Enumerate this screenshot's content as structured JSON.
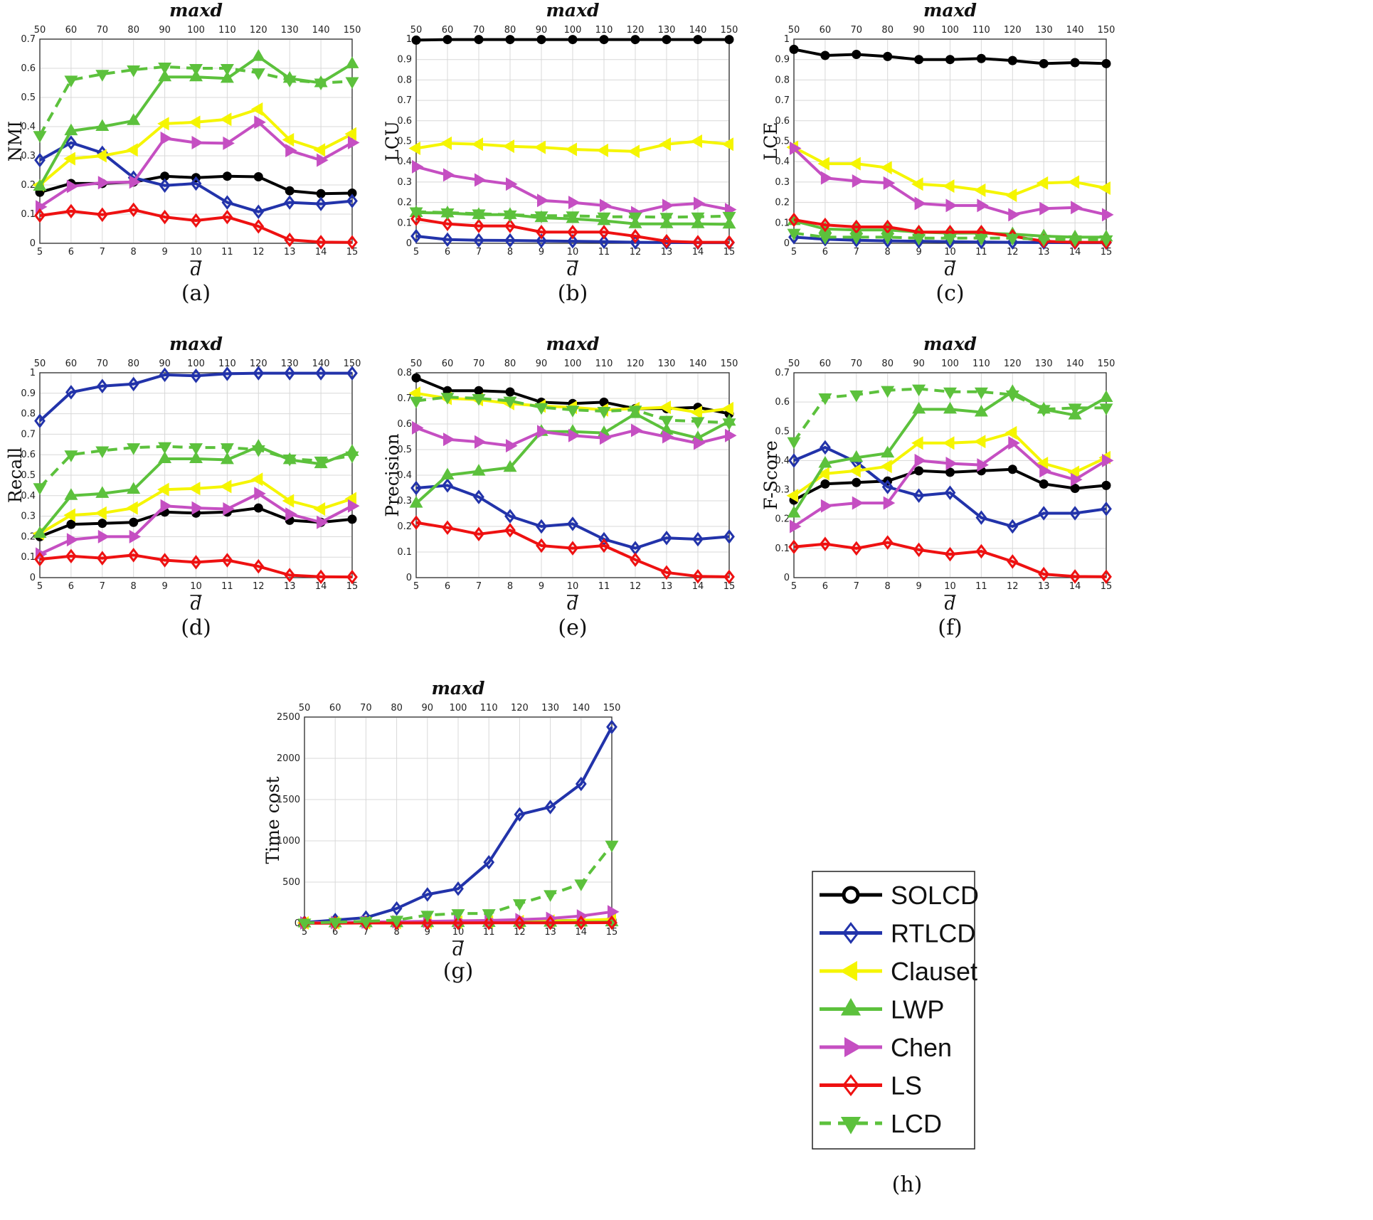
{
  "legend": {
    "entries": [
      "SOLCD",
      "RTLCD",
      "Clauset",
      "LWP",
      "Chen",
      "LS",
      "LCD"
    ],
    "colors": [
      "#000000",
      "#2233aa",
      "#f5f500",
      "#5cc13c",
      "#c54fc2",
      "#ee1111",
      "#5cc13c"
    ],
    "markers": [
      "circle",
      "diamond",
      "triangle-left",
      "triangle-up",
      "triangle-right",
      "diamond",
      "triangle-down"
    ],
    "dashed": [
      false,
      false,
      false,
      false,
      false,
      false,
      true
    ],
    "panel_label": "(h)"
  },
  "chart_data": [
    {
      "type": "line",
      "panel": "(a)",
      "ylabel": "NMI",
      "xlabel": "d",
      "top_label": "maxd",
      "ylim": [
        0,
        0.7
      ],
      "yticks": [
        "0",
        "0.1",
        "0.2",
        "0.3",
        "0.4",
        "0.5",
        "0.6",
        "0.7"
      ],
      "x": [
        5,
        6,
        7,
        8,
        9,
        10,
        11,
        12,
        13,
        14,
        15
      ],
      "x_top": [
        "50",
        "60",
        "70",
        "80",
        "90",
        "100",
        "110",
        "120",
        "130",
        "140",
        "150"
      ],
      "series": [
        {
          "name": "SOLCD",
          "values": [
            0.175,
            0.205,
            0.205,
            0.21,
            0.23,
            0.225,
            0.23,
            0.228,
            0.18,
            0.17,
            0.172
          ]
        },
        {
          "name": "RTLCD",
          "values": [
            0.285,
            0.345,
            0.31,
            0.225,
            0.198,
            0.205,
            0.14,
            0.108,
            0.14,
            0.135,
            0.145
          ]
        },
        {
          "name": "Clauset",
          "values": [
            0.2,
            0.29,
            0.3,
            0.32,
            0.41,
            0.415,
            0.425,
            0.46,
            0.355,
            0.32,
            0.375
          ]
        },
        {
          "name": "LWP",
          "values": [
            0.195,
            0.385,
            0.4,
            0.42,
            0.57,
            0.57,
            0.565,
            0.64,
            0.565,
            0.55,
            0.615
          ]
        },
        {
          "name": "Chen",
          "values": [
            0.125,
            0.195,
            0.208,
            0.21,
            0.36,
            0.345,
            0.343,
            0.415,
            0.318,
            0.285,
            0.345
          ]
        },
        {
          "name": "LS",
          "values": [
            0.095,
            0.11,
            0.098,
            0.115,
            0.09,
            0.078,
            0.09,
            0.058,
            0.012,
            0.004,
            0.003
          ]
        },
        {
          "name": "LCD",
          "values": [
            0.37,
            0.56,
            0.58,
            0.595,
            0.605,
            0.6,
            0.6,
            0.585,
            0.56,
            0.55,
            0.555
          ]
        }
      ]
    },
    {
      "type": "line",
      "panel": "(b)",
      "ylabel": "LCU",
      "xlabel": "d",
      "top_label": "maxd",
      "ylim": [
        0,
        1
      ],
      "yticks": [
        "0",
        "0.1",
        "0.2",
        "0.3",
        "0.4",
        "0.5",
        "0.6",
        "0.7",
        "0.8",
        "0.9",
        "1"
      ],
      "x": [
        5,
        6,
        7,
        8,
        9,
        10,
        11,
        12,
        13,
        14,
        15
      ],
      "x_top": [
        "50",
        "60",
        "70",
        "80",
        "90",
        "100",
        "110",
        "120",
        "130",
        "140",
        "150"
      ],
      "series": [
        {
          "name": "SOLCD",
          "values": [
            0.995,
            0.998,
            0.998,
            0.998,
            0.998,
            0.998,
            0.998,
            0.998,
            0.998,
            0.998,
            0.998
          ]
        },
        {
          "name": "RTLCD",
          "values": [
            0.035,
            0.018,
            0.015,
            0.014,
            0.012,
            0.01,
            0.008,
            0.005,
            0.004,
            0.003,
            0.003
          ]
        },
        {
          "name": "Clauset",
          "values": [
            0.465,
            0.49,
            0.485,
            0.475,
            0.47,
            0.46,
            0.455,
            0.45,
            0.485,
            0.5,
            0.485
          ]
        },
        {
          "name": "LWP",
          "values": [
            0.15,
            0.148,
            0.14,
            0.14,
            0.125,
            0.12,
            0.11,
            0.095,
            0.095,
            0.095,
            0.093
          ]
        },
        {
          "name": "Chen",
          "values": [
            0.375,
            0.335,
            0.31,
            0.29,
            0.21,
            0.2,
            0.185,
            0.15,
            0.185,
            0.195,
            0.165
          ]
        },
        {
          "name": "LS",
          "values": [
            0.12,
            0.095,
            0.085,
            0.085,
            0.055,
            0.055,
            0.055,
            0.035,
            0.01,
            0.005,
            0.005
          ]
        },
        {
          "name": "LCD",
          "values": [
            0.155,
            0.15,
            0.145,
            0.14,
            0.135,
            0.135,
            0.13,
            0.13,
            0.128,
            0.13,
            0.133
          ]
        }
      ]
    },
    {
      "type": "line",
      "panel": "(c)",
      "ylabel": "LCE",
      "xlabel": "d",
      "top_label": "maxd",
      "ylim": [
        0,
        1
      ],
      "yticks": [
        "0",
        "0.1",
        "0.2",
        "0.3",
        "0.4",
        "0.5",
        "0.6",
        "0.7",
        "0.8",
        "0.9",
        "1"
      ],
      "x": [
        5,
        6,
        7,
        8,
        9,
        10,
        11,
        12,
        13,
        14,
        15
      ],
      "x_top": [
        "50",
        "60",
        "70",
        "80",
        "90",
        "100",
        "110",
        "120",
        "130",
        "140",
        "150"
      ],
      "series": [
        {
          "name": "SOLCD",
          "values": [
            0.95,
            0.92,
            0.925,
            0.915,
            0.9,
            0.9,
            0.905,
            0.895,
            0.88,
            0.885,
            0.88
          ]
        },
        {
          "name": "RTLCD",
          "values": [
            0.03,
            0.02,
            0.015,
            0.012,
            0.01,
            0.008,
            0.006,
            0.005,
            0.004,
            0.003,
            0.003
          ]
        },
        {
          "name": "Clauset",
          "values": [
            0.47,
            0.39,
            0.39,
            0.37,
            0.29,
            0.28,
            0.26,
            0.235,
            0.295,
            0.3,
            0.27
          ]
        },
        {
          "name": "LWP",
          "values": [
            0.11,
            0.07,
            0.065,
            0.065,
            0.055,
            0.05,
            0.05,
            0.045,
            0.035,
            0.03,
            0.03
          ]
        },
        {
          "name": "Chen",
          "values": [
            0.465,
            0.32,
            0.305,
            0.295,
            0.195,
            0.185,
            0.185,
            0.14,
            0.17,
            0.175,
            0.14
          ]
        },
        {
          "name": "LS",
          "values": [
            0.115,
            0.09,
            0.08,
            0.08,
            0.055,
            0.055,
            0.055,
            0.035,
            0.01,
            0.005,
            0.005
          ]
        },
        {
          "name": "LCD",
          "values": [
            0.05,
            0.03,
            0.03,
            0.03,
            0.025,
            0.025,
            0.025,
            0.025,
            0.02,
            0.018,
            0.018
          ]
        }
      ]
    },
    {
      "type": "line",
      "panel": "(d)",
      "ylabel": "Recall",
      "xlabel": "d",
      "top_label": "maxd",
      "ylim": [
        0,
        1
      ],
      "yticks": [
        "0",
        "0.1",
        "0.2",
        "0.3",
        "0.4",
        "0.5",
        "0.6",
        "0.7",
        "0.8",
        "0.9",
        "1"
      ],
      "x": [
        5,
        6,
        7,
        8,
        9,
        10,
        11,
        12,
        13,
        14,
        15
      ],
      "x_top": [
        "50",
        "60",
        "70",
        "80",
        "90",
        "100",
        "110",
        "120",
        "130",
        "140",
        "150"
      ],
      "series": [
        {
          "name": "SOLCD",
          "values": [
            0.2,
            0.26,
            0.265,
            0.27,
            0.32,
            0.315,
            0.32,
            0.34,
            0.28,
            0.27,
            0.285
          ]
        },
        {
          "name": "RTLCD",
          "values": [
            0.765,
            0.905,
            0.935,
            0.945,
            0.99,
            0.985,
            0.995,
            0.998,
            0.998,
            0.998,
            0.998
          ]
        },
        {
          "name": "Clauset",
          "values": [
            0.215,
            0.305,
            0.315,
            0.34,
            0.43,
            0.435,
            0.445,
            0.48,
            0.375,
            0.335,
            0.385
          ]
        },
        {
          "name": "LWP",
          "values": [
            0.215,
            0.4,
            0.41,
            0.43,
            0.58,
            0.58,
            0.575,
            0.64,
            0.575,
            0.555,
            0.615
          ]
        },
        {
          "name": "Chen",
          "values": [
            0.115,
            0.185,
            0.2,
            0.2,
            0.35,
            0.34,
            0.335,
            0.41,
            0.31,
            0.27,
            0.35
          ]
        },
        {
          "name": "LS",
          "values": [
            0.09,
            0.105,
            0.095,
            0.11,
            0.085,
            0.075,
            0.085,
            0.055,
            0.012,
            0.004,
            0.003
          ]
        },
        {
          "name": "LCD",
          "values": [
            0.44,
            0.6,
            0.62,
            0.635,
            0.64,
            0.635,
            0.635,
            0.625,
            0.58,
            0.57,
            0.595
          ]
        }
      ]
    },
    {
      "type": "line",
      "panel": "(e)",
      "ylabel": "Precision",
      "xlabel": "d",
      "top_label": "maxd",
      "ylim": [
        0,
        0.8
      ],
      "yticks": [
        "0",
        "0.1",
        "0.2",
        "0.3",
        "0.4",
        "0.5",
        "0.6",
        "0.7",
        "0.8"
      ],
      "x": [
        5,
        6,
        7,
        8,
        9,
        10,
        11,
        12,
        13,
        14,
        15
      ],
      "x_top": [
        "50",
        "60",
        "70",
        "80",
        "90",
        "100",
        "110",
        "120",
        "130",
        "140",
        "150"
      ],
      "series": [
        {
          "name": "SOLCD",
          "values": [
            0.78,
            0.73,
            0.73,
            0.725,
            0.685,
            0.68,
            0.685,
            0.66,
            0.66,
            0.665,
            0.64
          ]
        },
        {
          "name": "RTLCD",
          "values": [
            0.35,
            0.36,
            0.315,
            0.24,
            0.2,
            0.21,
            0.15,
            0.115,
            0.155,
            0.15,
            0.16
          ]
        },
        {
          "name": "Clauset",
          "values": [
            0.72,
            0.7,
            0.695,
            0.68,
            0.67,
            0.665,
            0.655,
            0.66,
            0.665,
            0.645,
            0.66
          ]
        },
        {
          "name": "LWP",
          "values": [
            0.29,
            0.4,
            0.415,
            0.43,
            0.57,
            0.57,
            0.565,
            0.64,
            0.575,
            0.545,
            0.61
          ]
        },
        {
          "name": "Chen",
          "values": [
            0.585,
            0.54,
            0.53,
            0.515,
            0.57,
            0.555,
            0.545,
            0.575,
            0.55,
            0.525,
            0.555
          ]
        },
        {
          "name": "LS",
          "values": [
            0.215,
            0.195,
            0.17,
            0.185,
            0.125,
            0.115,
            0.125,
            0.07,
            0.02,
            0.005,
            0.003
          ]
        },
        {
          "name": "LCD",
          "values": [
            0.69,
            0.705,
            0.7,
            0.69,
            0.665,
            0.655,
            0.65,
            0.655,
            0.615,
            0.61,
            0.605
          ]
        }
      ]
    },
    {
      "type": "line",
      "panel": "(f)",
      "ylabel": "F-Score",
      "xlabel": "d",
      "top_label": "maxd",
      "ylim": [
        0,
        0.7
      ],
      "yticks": [
        "0",
        "0.1",
        "0.2",
        "0.3",
        "0.4",
        "0.5",
        "0.6",
        "0.7"
      ],
      "x": [
        5,
        6,
        7,
        8,
        9,
        10,
        11,
        12,
        13,
        14,
        15
      ],
      "x_top": [
        "50",
        "60",
        "70",
        "80",
        "90",
        "100",
        "110",
        "120",
        "130",
        "140",
        "150"
      ],
      "series": [
        {
          "name": "SOLCD",
          "values": [
            0.265,
            0.32,
            0.325,
            0.33,
            0.365,
            0.36,
            0.365,
            0.37,
            0.32,
            0.305,
            0.315
          ]
        },
        {
          "name": "RTLCD",
          "values": [
            0.4,
            0.445,
            0.395,
            0.31,
            0.28,
            0.29,
            0.205,
            0.175,
            0.22,
            0.22,
            0.235
          ]
        },
        {
          "name": "Clauset",
          "values": [
            0.28,
            0.355,
            0.365,
            0.38,
            0.46,
            0.46,
            0.465,
            0.495,
            0.39,
            0.36,
            0.41
          ]
        },
        {
          "name": "LWP",
          "values": [
            0.22,
            0.39,
            0.41,
            0.425,
            0.575,
            0.575,
            0.565,
            0.635,
            0.575,
            0.555,
            0.615
          ]
        },
        {
          "name": "Chen",
          "values": [
            0.175,
            0.245,
            0.255,
            0.255,
            0.4,
            0.39,
            0.385,
            0.46,
            0.365,
            0.335,
            0.4
          ]
        },
        {
          "name": "LS",
          "values": [
            0.105,
            0.115,
            0.1,
            0.12,
            0.095,
            0.08,
            0.09,
            0.055,
            0.012,
            0.004,
            0.003
          ]
        },
        {
          "name": "LCD",
          "values": [
            0.465,
            0.615,
            0.625,
            0.64,
            0.645,
            0.635,
            0.635,
            0.625,
            0.575,
            0.58,
            0.58
          ]
        }
      ]
    },
    {
      "type": "line",
      "panel": "(g)",
      "ylabel": "Time cost",
      "xlabel": "d",
      "top_label": "maxd",
      "ylim": [
        0,
        2500
      ],
      "yticks": [
        "0",
        "500",
        "1000",
        "1500",
        "2000",
        "2500"
      ],
      "x": [
        5,
        6,
        7,
        8,
        9,
        10,
        11,
        12,
        13,
        14,
        15
      ],
      "x_top": [
        "50",
        "60",
        "70",
        "80",
        "90",
        "100",
        "110",
        "120",
        "130",
        "140",
        "150"
      ],
      "series": [
        {
          "name": "SOLCD",
          "values": [
            5,
            8,
            10,
            12,
            15,
            18,
            20,
            25,
            30,
            35,
            40
          ]
        },
        {
          "name": "RTLCD",
          "values": [
            10,
            40,
            70,
            180,
            350,
            420,
            740,
            1320,
            1410,
            1690,
            2380
          ]
        },
        {
          "name": "Clauset",
          "values": [
            5,
            6,
            8,
            10,
            12,
            15,
            18,
            22,
            28,
            35,
            50
          ]
        },
        {
          "name": "LWP",
          "values": [
            3,
            4,
            5,
            6,
            7,
            8,
            9,
            10,
            12,
            14,
            16
          ]
        },
        {
          "name": "Chen",
          "values": [
            5,
            10,
            15,
            20,
            25,
            30,
            35,
            45,
            60,
            90,
            140
          ]
        },
        {
          "name": "LS",
          "values": [
            3,
            3,
            4,
            4,
            5,
            5,
            6,
            6,
            7,
            8,
            9
          ]
        },
        {
          "name": "LCD",
          "values": [
            5,
            15,
            25,
            40,
            100,
            120,
            120,
            240,
            350,
            480,
            950
          ]
        }
      ]
    }
  ]
}
